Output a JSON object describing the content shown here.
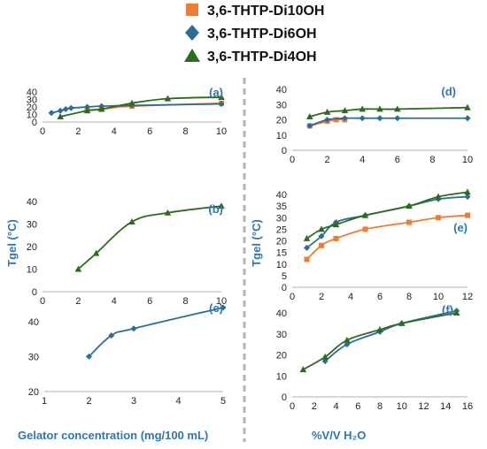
{
  "colors": {
    "di10oh": "#f07c34",
    "di6oh": "#2a6e96",
    "di4oh": "#2e6b1e",
    "label": "#2e75b6",
    "divider": "#b5b5b5"
  },
  "legend": [
    {
      "key": "di10oh",
      "label": "3,6-THTP-Di10OH",
      "marker": "square"
    },
    {
      "key": "di6oh",
      "label": "3,6-THTP-Di6OH",
      "marker": "diamond"
    },
    {
      "key": "di4oh",
      "label": "3,6-THTP-Di4OH",
      "marker": "triangle"
    }
  ],
  "labels": {
    "left_ylabel": "Tgel (°C)",
    "right_ylabel": "Tgel (°C)",
    "left_xlabel": "Gelator concentration (mg/100 mL)",
    "right_xlabel": "%V/V H₂O"
  },
  "chart_data": [
    {
      "id": "a",
      "tag": "(a)",
      "type": "line",
      "xlim": [
        0,
        10
      ],
      "ylim": [
        0,
        40
      ],
      "xticks": [
        0,
        2,
        4,
        6,
        8,
        10
      ],
      "yticks": [
        0,
        10,
        20,
        30,
        40
      ],
      "series": [
        {
          "key": "di10oh",
          "marker": "square",
          "x": [
            2.5,
            3.3,
            5,
            10
          ],
          "y": [
            16,
            17,
            21,
            25
          ]
        },
        {
          "key": "di6oh",
          "marker": "diamond",
          "x": [
            0.5,
            1,
            1.3,
            1.6,
            2.5,
            3.3,
            5,
            10
          ],
          "y": [
            12,
            15,
            17,
            18.5,
            20,
            21,
            22,
            24
          ]
        },
        {
          "key": "di4oh",
          "marker": "triangle",
          "x": [
            1,
            2.5,
            3.3,
            5,
            7,
            10
          ],
          "y": [
            7,
            15,
            17,
            25,
            31,
            33
          ]
        }
      ]
    },
    {
      "id": "b",
      "tag": "(b)",
      "type": "line",
      "xlim": [
        0,
        10
      ],
      "ylim": [
        0,
        40
      ],
      "xticks": [
        0,
        2,
        4,
        6,
        8,
        10
      ],
      "yticks": [
        0,
        10,
        20,
        30,
        40
      ],
      "series": [
        {
          "key": "di4oh",
          "marker": "triangle",
          "x": [
            2,
            3,
            5,
            7,
            10
          ],
          "y": [
            10,
            17,
            31,
            35,
            38
          ]
        }
      ]
    },
    {
      "id": "c",
      "tag": "(c)",
      "type": "line",
      "xlim": [
        1,
        5
      ],
      "ylim": [
        20,
        45
      ],
      "xticks": [
        1,
        2,
        3,
        4,
        5
      ],
      "yticks": [
        20,
        30,
        40
      ],
      "series": [
        {
          "key": "di6oh",
          "marker": "diamond",
          "x": [
            2,
            2.5,
            3,
            5
          ],
          "y": [
            30,
            36,
            38,
            44
          ]
        }
      ]
    },
    {
      "id": "d",
      "tag": "(d)",
      "type": "line",
      "xlim": [
        0,
        10
      ],
      "ylim": [
        0,
        40
      ],
      "xticks": [
        0,
        2,
        4,
        6,
        8,
        10
      ],
      "yticks": [
        0,
        10,
        20,
        30,
        40
      ],
      "series": [
        {
          "key": "di10oh",
          "marker": "square",
          "x": [
            1,
            2,
            2.5,
            3
          ],
          "y": [
            16,
            19,
            20,
            20
          ]
        },
        {
          "key": "di6oh",
          "marker": "diamond",
          "x": [
            1,
            2,
            3,
            4,
            5,
            6,
            10
          ],
          "y": [
            16,
            20,
            21,
            21,
            21,
            21,
            21
          ]
        },
        {
          "key": "di4oh",
          "marker": "triangle",
          "x": [
            1,
            2,
            3,
            4,
            5,
            6,
            10
          ],
          "y": [
            22,
            25,
            26,
            27,
            27,
            27,
            28
          ]
        }
      ]
    },
    {
      "id": "e",
      "tag": "(e)",
      "type": "line",
      "xlim": [
        0,
        12
      ],
      "ylim": [
        0,
        40
      ],
      "xticks": [
        0,
        2,
        4,
        6,
        8,
        10,
        12
      ],
      "yticks": [
        0,
        5,
        10,
        15,
        20,
        25,
        30,
        35,
        40
      ],
      "series": [
        {
          "key": "di10oh",
          "marker": "square",
          "x": [
            1,
            2,
            3,
            5,
            8,
            10,
            12
          ],
          "y": [
            12,
            18,
            21,
            25,
            28,
            30,
            31
          ]
        },
        {
          "key": "di6oh",
          "marker": "diamond",
          "x": [
            1,
            2,
            3,
            5,
            8,
            10,
            12
          ],
          "y": [
            17,
            22,
            28,
            31,
            35,
            38,
            39
          ]
        },
        {
          "key": "di4oh",
          "marker": "triangle",
          "x": [
            1,
            2,
            3,
            5,
            8,
            10,
            12
          ],
          "y": [
            21,
            25,
            27,
            31,
            35,
            39,
            41
          ]
        }
      ]
    },
    {
      "id": "f",
      "tag": "(f)",
      "type": "line",
      "xlim": [
        0,
        16
      ],
      "ylim": [
        0,
        40
      ],
      "xticks": [
        0,
        2,
        4,
        6,
        8,
        10,
        12,
        14,
        16
      ],
      "yticks": [
        0,
        10,
        20,
        30,
        40
      ],
      "series": [
        {
          "key": "di6oh",
          "marker": "diamond",
          "x": [
            3,
            5,
            8,
            10,
            15
          ],
          "y": [
            17,
            25,
            31,
            35,
            41
          ]
        },
        {
          "key": "di4oh",
          "marker": "triangle",
          "x": [
            1,
            3,
            5,
            8,
            10,
            15
          ],
          "y": [
            13,
            19,
            27,
            32,
            35,
            40
          ]
        }
      ]
    }
  ]
}
